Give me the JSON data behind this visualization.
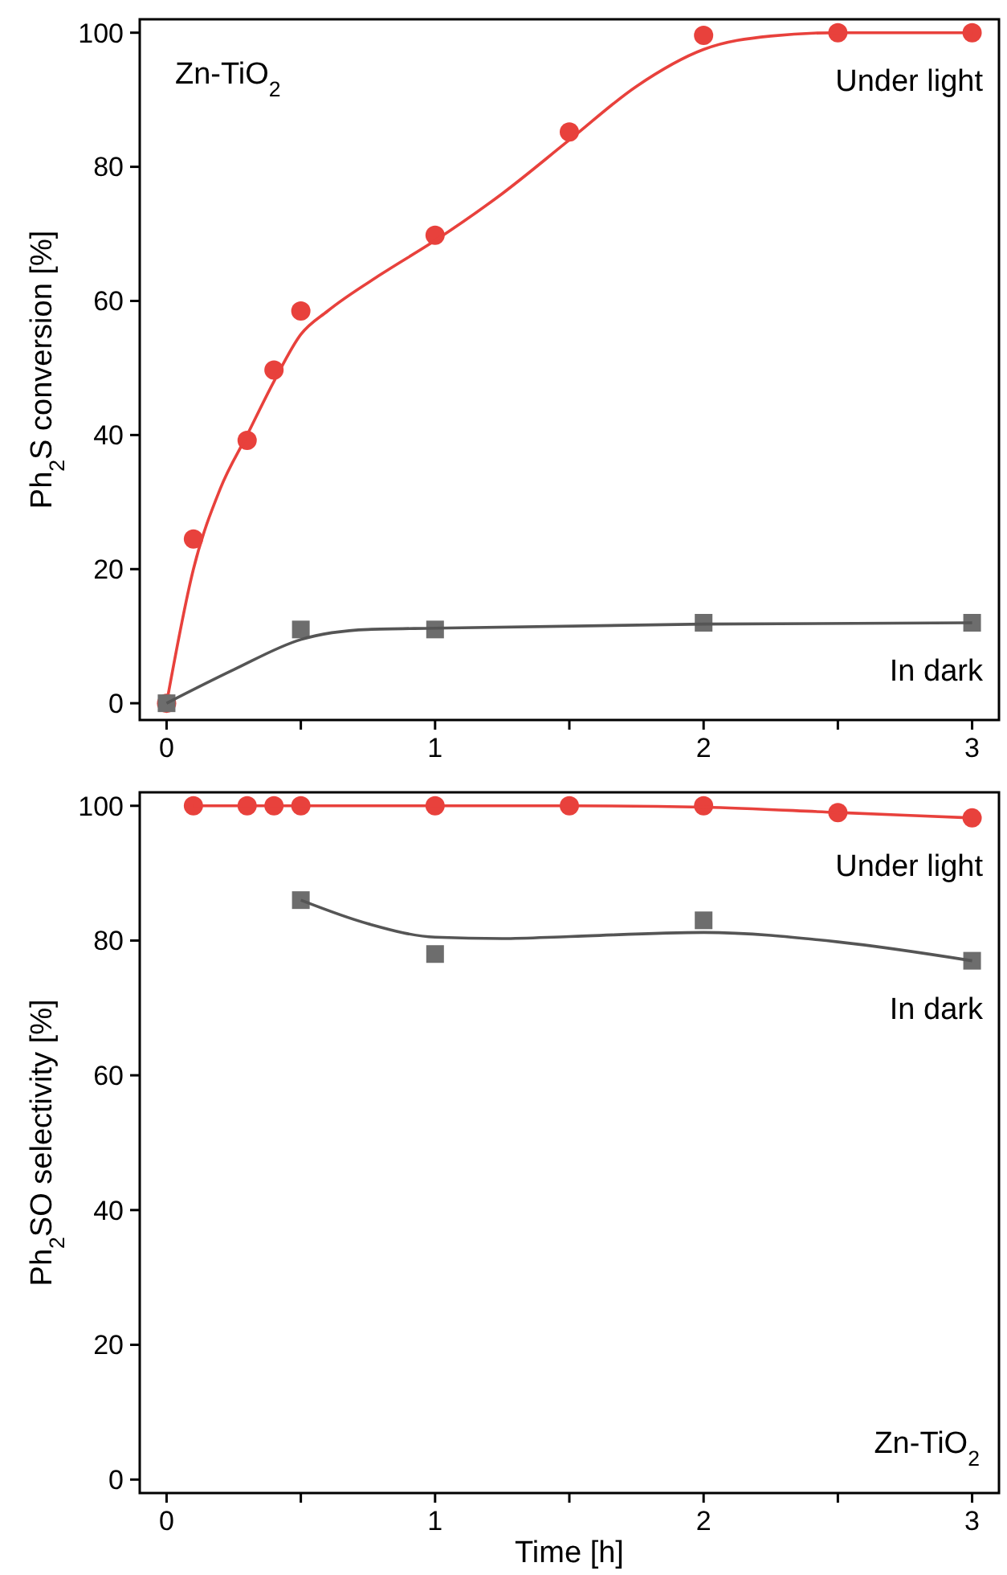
{
  "chart_data": [
    {
      "type": "scatter",
      "ylabel": "Ph$_{2}$S conversion [%]",
      "annotations": [
        "Zn-TiO$_{2}$"
      ],
      "xlim": [
        -0.1,
        3.1
      ],
      "ylim": [
        -2.5,
        102
      ],
      "xticks": [
        0,
        {
          "value": 0.5,
          "label": null
        },
        1,
        {
          "value": 1.5,
          "label": null
        },
        2,
        {
          "value": 2.5,
          "label": null
        },
        3
      ],
      "yticks": [
        0,
        20,
        40,
        60,
        80,
        100
      ],
      "grid": false,
      "series": [
        {
          "name": "Under light",
          "marker": "circle",
          "color": "#e8413c",
          "x": [
            0,
            0.1,
            0.3,
            0.4,
            0.5,
            1,
            1.5,
            2,
            2.5,
            3
          ],
          "values": [
            0,
            24.5,
            39.2,
            49.7,
            58.5,
            69.8,
            85.2,
            99.6,
            100,
            100
          ]
        },
        {
          "type": "line",
          "marker": "none",
          "color": "#e8413c",
          "x": [
            0,
            0.1,
            0.2,
            0.3,
            0.4,
            0.5,
            0.6,
            0.8,
            1,
            1.25,
            1.5,
            1.75,
            2,
            2.25,
            2.5,
            3
          ],
          "values": [
            0,
            20,
            32,
            40,
            48,
            55,
            58.5,
            64,
            69,
            76,
            84,
            92,
            97.5,
            99.5,
            100,
            100
          ]
        },
        {
          "name": "In dark",
          "marker": "square",
          "color": "#6d6d6d",
          "x": [
            0,
            0.5,
            1,
            2,
            3
          ],
          "values": [
            0,
            11,
            11,
            12,
            12
          ]
        },
        {
          "type": "line",
          "marker": "none",
          "color": "#555555",
          "x": [
            0,
            0.25,
            0.5,
            0.75,
            1,
            2,
            3
          ],
          "values": [
            0,
            5,
            9.5,
            11,
            11.2,
            11.8,
            12
          ]
        }
      ]
    },
    {
      "type": "scatter",
      "xlabel": "Time [h]",
      "ylabel": "Ph$_{2}$SO selectivity [%]",
      "annotations": [
        "Zn-TiO$_{2}$"
      ],
      "xlim": [
        -0.1,
        3.1
      ],
      "ylim": [
        -2,
        102
      ],
      "xticks": [
        0,
        {
          "value": 0.5,
          "label": null
        },
        1,
        {
          "value": 1.5,
          "label": null
        },
        2,
        {
          "value": 2.5,
          "label": null
        },
        3
      ],
      "yticks": [
        0,
        20,
        40,
        60,
        80,
        100
      ],
      "grid": false,
      "series": [
        {
          "name": "Under light",
          "marker": "circle",
          "color": "#e8413c",
          "x": [
            0.1,
            0.3,
            0.4,
            0.5,
            1,
            1.5,
            2,
            2.5,
            3
          ],
          "values": [
            100,
            100,
            100,
            100,
            100,
            100,
            100,
            99,
            98.2
          ]
        },
        {
          "type": "line",
          "marker": "none",
          "color": "#e8413c",
          "x": [
            0.1,
            0.5,
            1,
            1.5,
            2,
            2.5,
            3
          ],
          "values": [
            100,
            100,
            100,
            100,
            99.8,
            99,
            98.2
          ]
        },
        {
          "name": "In dark",
          "marker": "square",
          "color": "#6d6d6d",
          "x": [
            0.5,
            1,
            2,
            3
          ],
          "values": [
            86,
            78,
            83,
            77
          ]
        },
        {
          "type": "line",
          "marker": "none",
          "color": "#555555",
          "x": [
            0.5,
            0.75,
            1,
            1.25,
            1.5,
            2,
            2.5,
            3
          ],
          "values": [
            86,
            82.5,
            80.5,
            80.3,
            80.6,
            81.2,
            79.8,
            77
          ]
        }
      ]
    }
  ]
}
